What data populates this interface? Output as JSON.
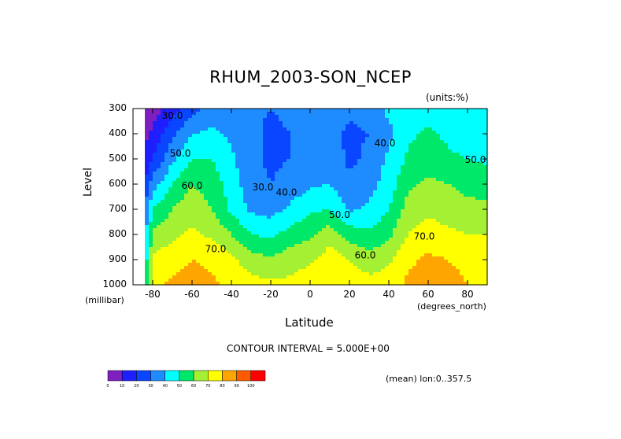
{
  "chart_data": {
    "type": "contour",
    "title": "RHUM_2003-SON_NCEP",
    "units_label": "(units:%)",
    "xlabel": "Latitude",
    "ylabel": "Level",
    "x_unit_label": "(degrees_north)",
    "y_unit_label": "(millibar)",
    "xlim": [
      -90,
      90
    ],
    "ylim": [
      1000,
      300
    ],
    "x_ticks": [
      "-80",
      "-60",
      "-40",
      "-20",
      "0",
      "20",
      "40",
      "60",
      "80"
    ],
    "x_tick_values": [
      -80,
      -60,
      -40,
      -20,
      0,
      20,
      40,
      60,
      80
    ],
    "y_ticks": [
      "300",
      "400",
      "500",
      "600",
      "700",
      "800",
      "900",
      "1000"
    ],
    "y_tick_values": [
      300,
      400,
      500,
      600,
      700,
      800,
      900,
      1000
    ],
    "contour_interval_text": "CONTOUR INTERVAL = 5.000E+00",
    "footnote": "(mean) lon:0..357.5",
    "lat": [
      -90,
      -80,
      -70,
      -60,
      -50,
      -40,
      -30,
      -20,
      -10,
      0,
      10,
      20,
      30,
      40,
      50,
      60,
      70,
      80,
      90
    ],
    "levels": [
      300,
      400,
      500,
      600,
      700,
      800,
      900,
      1000
    ],
    "values": [
      [
        0,
        5,
        15,
        25,
        35,
        40,
        32,
        30,
        32,
        40,
        35,
        32,
        35,
        42,
        42,
        45,
        42,
        40,
        40
      ],
      [
        0,
        12,
        28,
        40,
        42,
        38,
        32,
        28,
        30,
        36,
        34,
        28,
        30,
        38,
        48,
        52,
        48,
        44,
        44
      ],
      [
        0,
        20,
        38,
        50,
        50,
        42,
        32,
        28,
        30,
        34,
        35,
        28,
        32,
        42,
        52,
        55,
        52,
        50,
        48
      ],
      [
        0,
        35,
        50,
        60,
        56,
        45,
        34,
        30,
        34,
        38,
        40,
        32,
        36,
        45,
        58,
        62,
        60,
        57,
        56
      ],
      [
        0,
        50,
        60,
        66,
        60,
        48,
        38,
        36,
        42,
        48,
        50,
        38,
        42,
        50,
        64,
        68,
        66,
        63,
        62
      ],
      [
        0,
        62,
        68,
        72,
        68,
        60,
        50,
        48,
        54,
        58,
        66,
        56,
        52,
        58,
        70,
        74,
        72,
        70,
        70
      ],
      [
        0,
        72,
        76,
        80,
        78,
        72,
        64,
        62,
        66,
        68,
        75,
        70,
        64,
        68,
        78,
        82,
        80,
        77,
        72
      ],
      [
        0,
        78,
        82,
        85,
        82,
        78,
        74,
        72,
        72,
        76,
        80,
        76,
        74,
        76,
        82,
        86,
        84,
        80,
        78
      ]
    ],
    "contour_labels": [
      {
        "text": "30.0",
        "lat": -70,
        "level": 340
      },
      {
        "text": "50.0",
        "lat": -66,
        "level": 490
      },
      {
        "text": "60.0",
        "lat": -60,
        "level": 618
      },
      {
        "text": "70.0",
        "lat": -48,
        "level": 870
      },
      {
        "text": "30.0",
        "lat": -24,
        "level": 625
      },
      {
        "text": "40.0",
        "lat": -12,
        "level": 645
      },
      {
        "text": "50.0",
        "lat": 15,
        "level": 735
      },
      {
        "text": "60.0",
        "lat": 28,
        "level": 895
      },
      {
        "text": "40.0",
        "lat": 38,
        "level": 450
      },
      {
        "text": "70.0",
        "lat": 58,
        "level": 820
      },
      {
        "text": "50.0",
        "lat": 84,
        "level": 515
      }
    ],
    "colorbar": {
      "ticks": [
        "0",
        "10",
        "20",
        "30",
        "40",
        "50",
        "60",
        "70",
        "80",
        "90",
        "100"
      ],
      "colors": [
        "#7f1fbf",
        "#1e1eff",
        "#0a46ff",
        "#1e8cff",
        "#00ffff",
        "#00e86a",
        "#a4f032",
        "#ffff00",
        "#ffa500",
        "#ff5a00",
        "#ff0000"
      ]
    }
  }
}
